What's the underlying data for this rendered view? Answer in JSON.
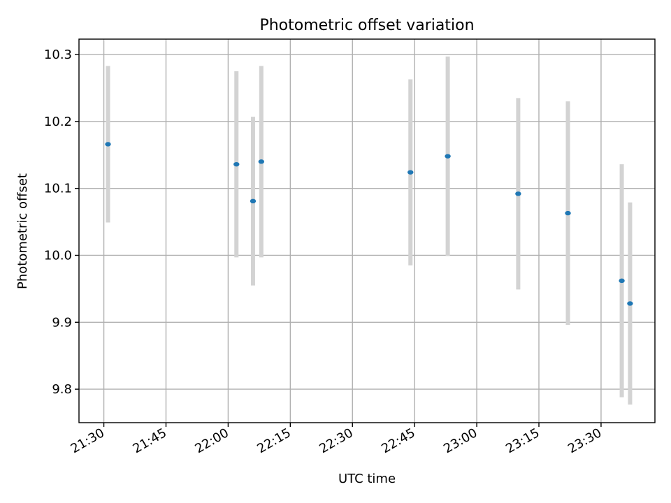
{
  "chart_data": {
    "type": "scatter",
    "title": "Photometric offset variation",
    "xlabel": "UTC time",
    "ylabel": "Photometric offset",
    "xlim": [
      "21:24",
      "23:43"
    ],
    "ylim": [
      9.75,
      10.323
    ],
    "grid": true,
    "x_ticks": [
      "21:30",
      "21:45",
      "22:00",
      "22:15",
      "22:30",
      "22:45",
      "23:00",
      "23:15",
      "23:30"
    ],
    "y_ticks": [
      9.8,
      9.9,
      10.0,
      10.1,
      10.2,
      10.3
    ],
    "y_tick_labels": [
      "9.8",
      "9.9",
      "10.0",
      "10.1",
      "10.2",
      "10.3"
    ],
    "series": [
      {
        "points": [
          {
            "x": "21:31",
            "y": 10.166,
            "err": 0.117
          },
          {
            "x": "22:02",
            "y": 10.136,
            "err": 0.139
          },
          {
            "x": "22:06",
            "y": 10.081,
            "err": 0.126
          },
          {
            "x": "22:08",
            "y": 10.14,
            "err": 0.143
          },
          {
            "x": "22:44",
            "y": 10.124,
            "err": 0.139
          },
          {
            "x": "22:53",
            "y": 10.148,
            "err": 0.149
          },
          {
            "x": "23:10",
            "y": 10.092,
            "err": 0.143
          },
          {
            "x": "23:22",
            "y": 10.063,
            "err": 0.167
          },
          {
            "x": "23:35",
            "y": 9.962,
            "err": 0.174
          },
          {
            "x": "23:37",
            "y": 9.928,
            "err": 0.151
          }
        ]
      }
    ],
    "colors": {
      "point": "#1f77b4",
      "errorbar": "#d3d3d3",
      "grid": "#b0b0b0"
    }
  }
}
